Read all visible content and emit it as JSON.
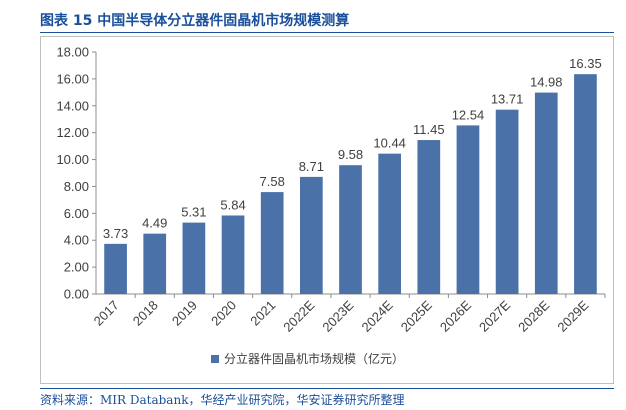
{
  "figure": {
    "title": "图表 15 中国半导体分立器件固晶机市场规模测算",
    "source": "资料来源：MIR Databank，华经产业研究院，华安证券研究所整理"
  },
  "colors": {
    "bar": "#4a72a8",
    "title": "#1a4f9c",
    "text": "#404040"
  },
  "chart_data": {
    "type": "bar",
    "categories": [
      "2017",
      "2018",
      "2019",
      "2020",
      "2021",
      "2022E",
      "2023E",
      "2024E",
      "2025E",
      "2026E",
      "2027E",
      "2028E",
      "2029E"
    ],
    "series": [
      {
        "name": "分立器件固晶机市场规模（亿元）",
        "values": [
          3.73,
          4.49,
          5.31,
          5.84,
          7.58,
          8.71,
          9.58,
          10.44,
          11.45,
          12.54,
          13.71,
          14.98,
          16.35
        ]
      }
    ],
    "yticks": [
      "0.00",
      "2.00",
      "4.00",
      "6.00",
      "8.00",
      "10.00",
      "12.00",
      "14.00",
      "16.00",
      "18.00"
    ],
    "data_labels": [
      "3.73",
      "4.49",
      "5.31",
      "5.84",
      "7.58",
      "8.71",
      "9.58",
      "10.44",
      "11.45",
      "12.54",
      "13.71",
      "14.98",
      "16.35"
    ],
    "ylim": [
      0,
      18
    ],
    "grid": false,
    "legend": "bottom"
  }
}
